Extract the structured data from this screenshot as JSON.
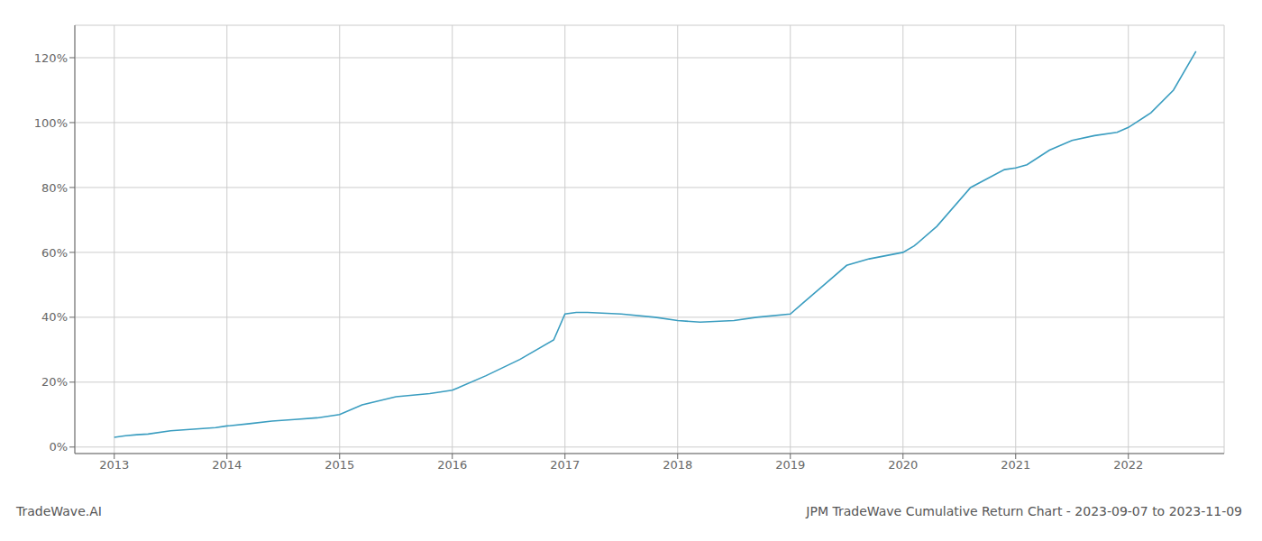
{
  "chart_data": {
    "type": "line",
    "annotations": [
      "TradeWave.AI",
      "JPM TradeWave Cumulative Return Chart - 2023-09-07 to 2023-11-09"
    ],
    "x": [
      2013.0,
      2013.1,
      2013.2,
      2013.3,
      2013.5,
      2013.7,
      2013.9,
      2014.0,
      2014.2,
      2014.4,
      2014.6,
      2014.8,
      2015.0,
      2015.2,
      2015.5,
      2015.8,
      2016.0,
      2016.3,
      2016.6,
      2016.9,
      2017.0,
      2017.1,
      2017.2,
      2017.5,
      2017.8,
      2018.0,
      2018.2,
      2018.5,
      2018.7,
      2019.0,
      2019.1,
      2019.3,
      2019.5,
      2019.7,
      2020.0,
      2020.1,
      2020.3,
      2020.6,
      2020.9,
      2021.0,
      2021.1,
      2021.3,
      2021.5,
      2021.7,
      2021.9,
      2022.0,
      2022.2,
      2022.4,
      2022.6
    ],
    "values": [
      0.03,
      0.035,
      0.038,
      0.04,
      0.05,
      0.055,
      0.06,
      0.065,
      0.072,
      0.08,
      0.085,
      0.09,
      0.1,
      0.13,
      0.155,
      0.165,
      0.175,
      0.22,
      0.27,
      0.33,
      0.41,
      0.415,
      0.415,
      0.41,
      0.4,
      0.39,
      0.385,
      0.39,
      0.4,
      0.41,
      0.44,
      0.5,
      0.56,
      0.58,
      0.6,
      0.62,
      0.68,
      0.8,
      0.855,
      0.86,
      0.87,
      0.915,
      0.945,
      0.96,
      0.97,
      0.985,
      1.03,
      1.1,
      1.22
    ],
    "color": "#3a9dc0",
    "xlim": [
      2012.65,
      2022.85
    ],
    "xticks": [
      2013,
      2014,
      2015,
      2016,
      2017,
      2018,
      2019,
      2020,
      2021,
      2022
    ],
    "ylim": [
      -0.02,
      1.3
    ],
    "yticks": [
      {
        "value": 0.0,
        "label": "0%"
      },
      {
        "value": 0.2,
        "label": "20%"
      },
      {
        "value": 0.4,
        "label": "40%"
      },
      {
        "value": 0.6,
        "label": "60%"
      },
      {
        "value": 0.8,
        "label": "80%"
      },
      {
        "value": 1.0,
        "label": "100%"
      },
      {
        "value": 1.2,
        "label": "120%"
      }
    ],
    "grid": true
  }
}
